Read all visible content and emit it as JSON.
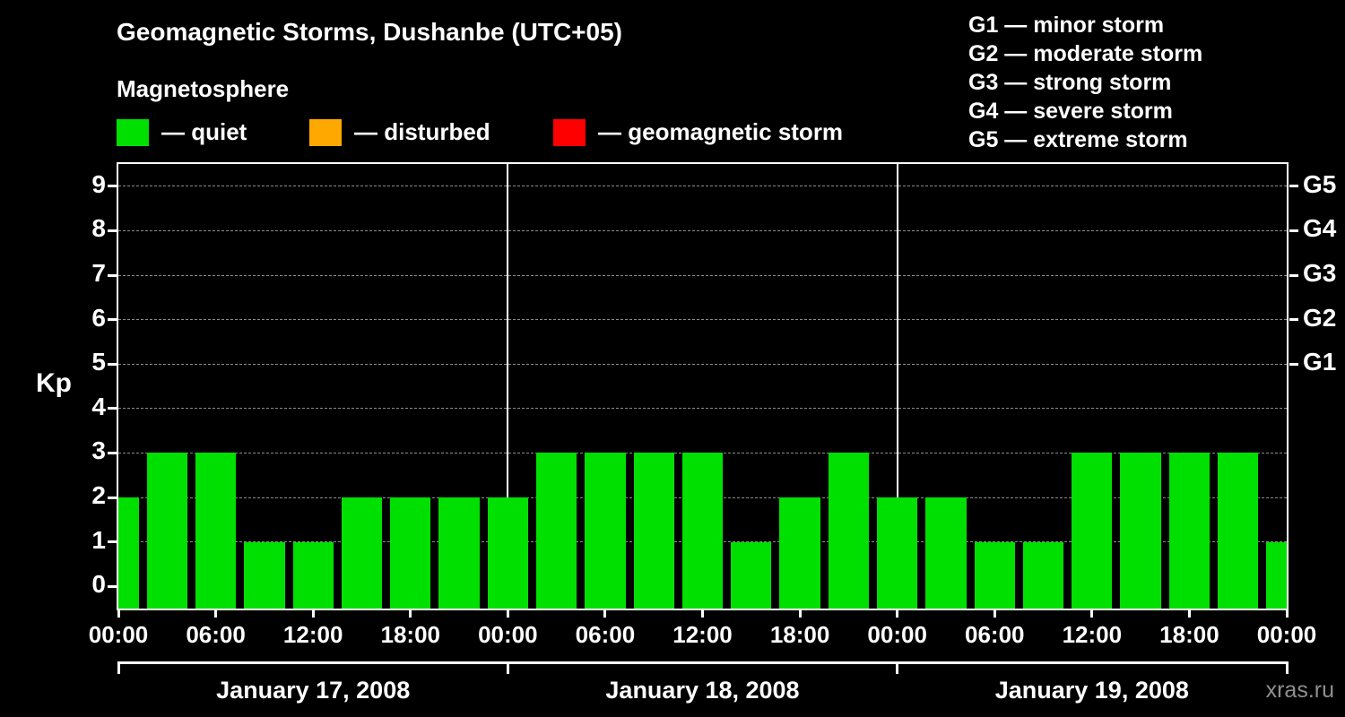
{
  "title": "Geomagnetic Storms, Dushanbe (UTC+05)",
  "legend": {
    "heading": "Magnetosphere",
    "items": [
      {
        "name": "quiet",
        "label": "— quiet",
        "color": "#00e000"
      },
      {
        "name": "disturbed",
        "label": "— disturbed",
        "color": "#ffa800"
      },
      {
        "name": "geomagnetic-storm",
        "label": "— geomagnetic storm",
        "color": "#ff0000"
      }
    ]
  },
  "g_scale_legend": [
    "G1 — minor storm",
    "G2 — moderate storm",
    "G3 — strong storm",
    "G4 — severe storm",
    "G5 — extreme storm"
  ],
  "watermark": "xras.ru",
  "chart_data": {
    "type": "bar",
    "title": "Geomagnetic Storms, Dushanbe (UTC+05)",
    "ylabel": "Kp",
    "ylim": [
      0,
      9
    ],
    "yticks": [
      0,
      1,
      2,
      3,
      4,
      5,
      6,
      7,
      8,
      9
    ],
    "grid": "dashed horizontal lines at integer Kp values",
    "legend_position": "top",
    "right_axis": [
      {
        "label": "G1",
        "kp": 5
      },
      {
        "label": "G2",
        "kp": 6
      },
      {
        "label": "G3",
        "kp": 7
      },
      {
        "label": "G4",
        "kp": 8
      },
      {
        "label": "G5",
        "kp": 9
      }
    ],
    "x_tick_labels": [
      "00:00",
      "06:00",
      "12:00",
      "18:00",
      "00:00",
      "06:00",
      "12:00",
      "18:00",
      "00:00",
      "06:00",
      "12:00",
      "18:00",
      "00:00"
    ],
    "hours_per_bar": 3,
    "days": [
      {
        "label": "January 17, 2008",
        "values": [
          2,
          3,
          3,
          1,
          1,
          2,
          2,
          2
        ]
      },
      {
        "label": "January 18, 2008",
        "values": [
          2,
          3,
          3,
          3,
          3,
          1,
          2,
          3
        ]
      },
      {
        "label": "January 19, 2008",
        "values": [
          2,
          2,
          1,
          1,
          3,
          3,
          3,
          3
        ]
      }
    ],
    "next_day_partial_value": 1,
    "color_rules": {
      "quiet_max_kp": 3,
      "disturbed_max_kp": 4
    },
    "colors": {
      "quiet": "#00e000",
      "disturbed": "#ffa800",
      "storm": "#ff0000"
    }
  }
}
